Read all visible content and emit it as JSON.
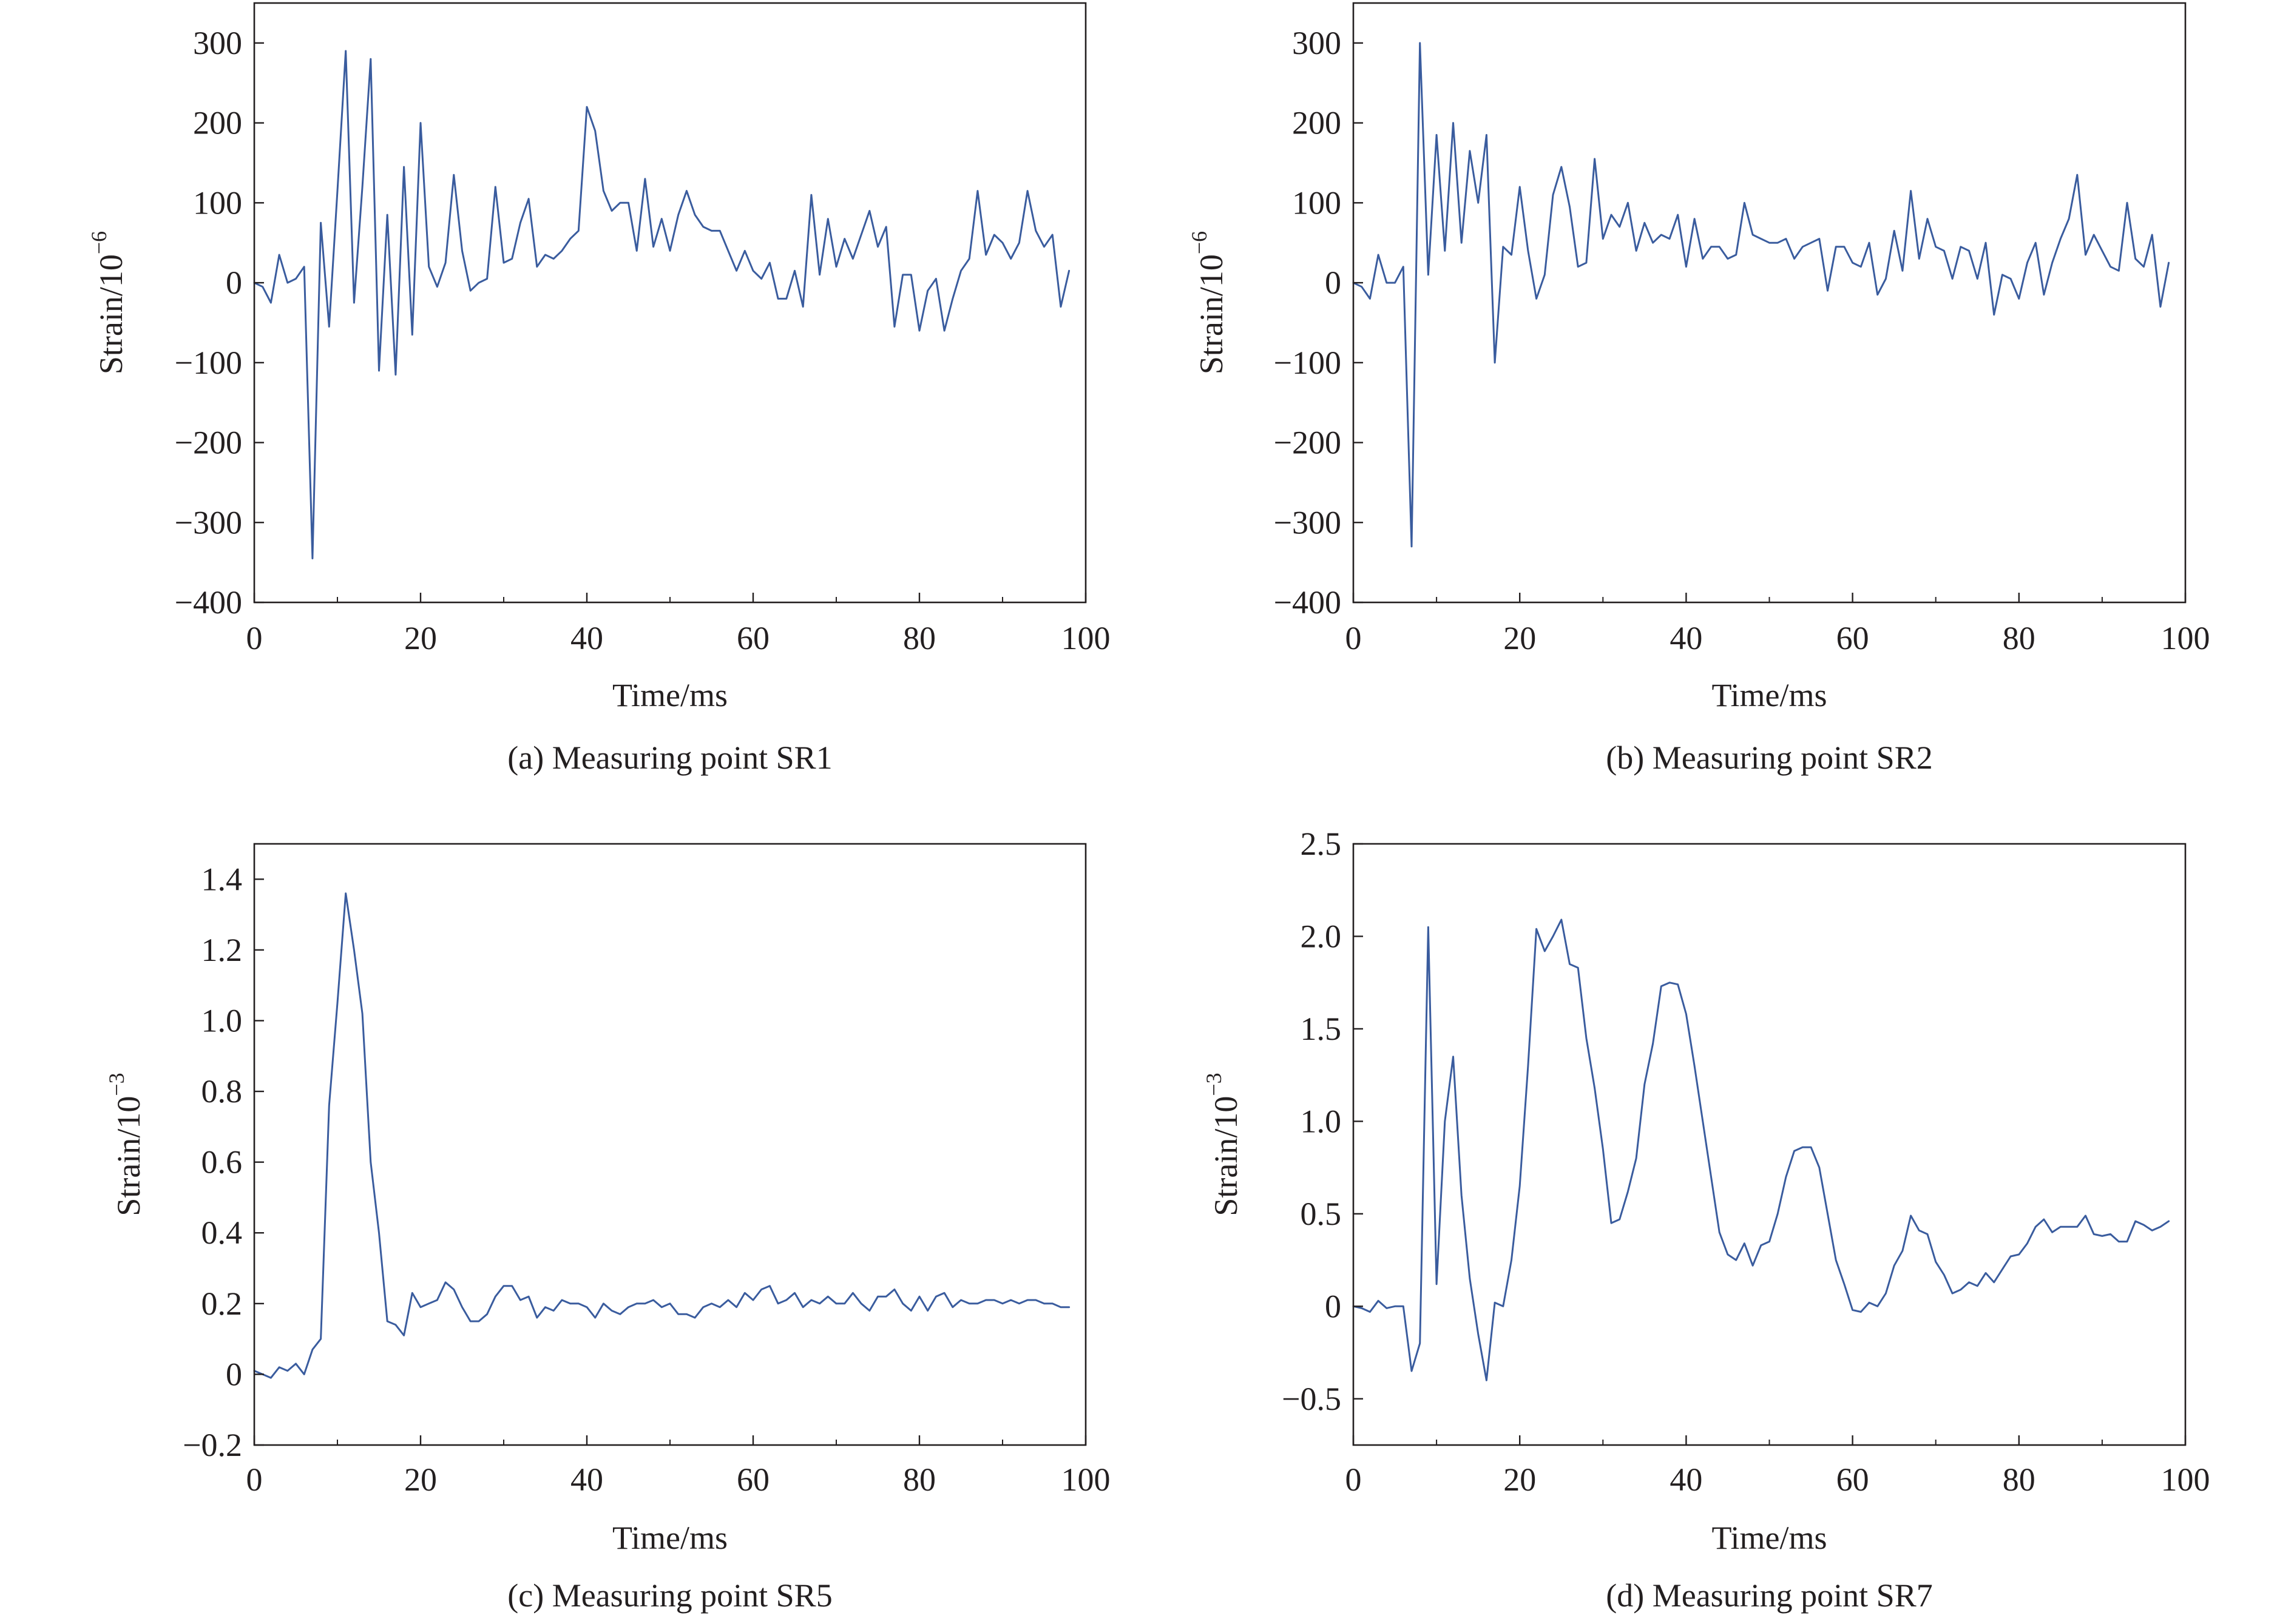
{
  "figure": {
    "line_color": "#3a5c9e",
    "axis_color": "#231f20"
  },
  "chart_data": [
    {
      "type": "line",
      "caption": "(a) Measuring point SR1",
      "xlabel": "Time/ms",
      "ylabel": "Strain/10",
      "ylabel_sup": "−6",
      "xlim": [
        0,
        100
      ],
      "ylim": [
        -400,
        350
      ],
      "xticks": [
        0,
        20,
        40,
        60,
        80,
        100
      ],
      "xtick_labels": [
        "0",
        "20",
        "40",
        "60",
        "80",
        "100"
      ],
      "xminor_ticks": [
        10,
        30,
        50,
        70,
        90
      ],
      "yticks": [
        -400,
        -300,
        -200,
        -100,
        0,
        100,
        200,
        300
      ],
      "ytick_labels": [
        "−400",
        "−300",
        "−200",
        "−100",
        "0",
        "100",
        "200",
        "300"
      ],
      "grid": false,
      "legend": "none",
      "series": [
        {
          "x": [
            0,
            1,
            2,
            3,
            4,
            5,
            6,
            7,
            8,
            9,
            10,
            11,
            12,
            13,
            14,
            15,
            16,
            17,
            18,
            19,
            20,
            21,
            22,
            23,
            24,
            25,
            26,
            27,
            28,
            29,
            30,
            31,
            32,
            33,
            34,
            35,
            36,
            37,
            38,
            39,
            40,
            41,
            42,
            43,
            44,
            45,
            46,
            47,
            48,
            49,
            50,
            51,
            52,
            53,
            54,
            55,
            56,
            57,
            58,
            59,
            60,
            61,
            62,
            63,
            64,
            65,
            66,
            67,
            68,
            69,
            70,
            71,
            72,
            73,
            74,
            75,
            76,
            77,
            78,
            79,
            80,
            81,
            82,
            83,
            84,
            85,
            86,
            87,
            88,
            89,
            90,
            91,
            92,
            93,
            94,
            95,
            96,
            97,
            98
          ],
          "y": [
            0,
            -5,
            -25,
            35,
            0,
            5,
            20,
            -345,
            75,
            -55,
            115,
            290,
            -25,
            120,
            280,
            -110,
            85,
            -115,
            145,
            -65,
            200,
            20,
            -5,
            25,
            135,
            40,
            -10,
            0,
            5,
            120,
            25,
            30,
            75,
            105,
            20,
            35,
            30,
            40,
            55,
            65,
            220,
            190,
            115,
            90,
            100,
            100,
            40,
            130,
            45,
            80,
            40,
            85,
            115,
            85,
            70,
            65,
            65,
            40,
            15,
            40,
            15,
            5,
            25,
            -20,
            -20,
            15,
            -30,
            110,
            10,
            80,
            20,
            55,
            30,
            60,
            90,
            45,
            70,
            -55,
            10,
            10,
            -60,
            -10,
            5,
            -60,
            -20,
            15,
            30,
            115,
            35,
            60,
            50,
            30,
            50,
            115,
            65,
            45,
            60,
            -30,
            15
          ]
        }
      ]
    },
    {
      "type": "line",
      "caption": "(b) Measuring point SR2",
      "xlabel": "Time/ms",
      "ylabel": "Strain/10",
      "ylabel_sup": "−6",
      "xlim": [
        0,
        100
      ],
      "ylim": [
        -400,
        350
      ],
      "xticks": [
        0,
        20,
        40,
        60,
        80,
        100
      ],
      "xtick_labels": [
        "0",
        "20",
        "40",
        "60",
        "80",
        "100"
      ],
      "xminor_ticks": [
        10,
        30,
        50,
        70,
        90
      ],
      "yticks": [
        -400,
        -300,
        -200,
        -100,
        0,
        100,
        200,
        300
      ],
      "ytick_labels": [
        "−400",
        "−300",
        "−200",
        "−100",
        "0",
        "100",
        "200",
        "300"
      ],
      "grid": false,
      "legend": "none",
      "series": [
        {
          "x": [
            0,
            1,
            2,
            3,
            4,
            5,
            6,
            7,
            8,
            9,
            10,
            11,
            12,
            13,
            14,
            15,
            16,
            17,
            18,
            19,
            20,
            21,
            22,
            23,
            24,
            25,
            26,
            27,
            28,
            29,
            30,
            31,
            32,
            33,
            34,
            35,
            36,
            37,
            38,
            39,
            40,
            41,
            42,
            43,
            44,
            45,
            46,
            47,
            48,
            49,
            50,
            51,
            52,
            53,
            54,
            55,
            56,
            57,
            58,
            59,
            60,
            61,
            62,
            63,
            64,
            65,
            66,
            67,
            68,
            69,
            70,
            71,
            72,
            73,
            74,
            75,
            76,
            77,
            78,
            79,
            80,
            81,
            82,
            83,
            84,
            85,
            86,
            87,
            88,
            89,
            90,
            91,
            92,
            93,
            94,
            95,
            96,
            97,
            98
          ],
          "y": [
            0,
            -5,
            -20,
            35,
            0,
            0,
            20,
            -330,
            300,
            10,
            185,
            40,
            200,
            50,
            165,
            100,
            185,
            -100,
            45,
            35,
            120,
            40,
            -20,
            10,
            110,
            145,
            95,
            20,
            25,
            155,
            55,
            85,
            70,
            100,
            40,
            75,
            50,
            60,
            55,
            85,
            20,
            80,
            30,
            45,
            45,
            30,
            35,
            100,
            60,
            55,
            50,
            50,
            55,
            30,
            45,
            50,
            55,
            -10,
            45,
            45,
            25,
            20,
            50,
            -15,
            5,
            65,
            15,
            115,
            30,
            80,
            45,
            40,
            5,
            45,
            40,
            5,
            50,
            -40,
            10,
            5,
            -20,
            25,
            50,
            -15,
            25,
            55,
            80,
            135,
            35,
            60,
            40,
            20,
            15,
            100,
            30,
            20,
            60,
            -30,
            25
          ]
        }
      ]
    },
    {
      "type": "line",
      "caption": "(c) Measuring point SR5",
      "xlabel": "Time/ms",
      "ylabel": "Strain/10",
      "ylabel_sup": "−3",
      "xlim": [
        0,
        100
      ],
      "ylim": [
        -0.2,
        1.5
      ],
      "xticks": [
        0,
        20,
        40,
        60,
        80,
        100
      ],
      "xtick_labels": [
        "0",
        "20",
        "40",
        "60",
        "80",
        "100"
      ],
      "xminor_ticks": [
        10,
        30,
        50,
        70,
        90
      ],
      "yticks": [
        -0.2,
        0,
        0.2,
        0.4,
        0.6,
        0.8,
        1.0,
        1.2,
        1.4
      ],
      "ytick_labels": [
        "−0.2",
        "0",
        "0.2",
        "0.4",
        "0.6",
        "0.8",
        "1.0",
        "1.2",
        "1.4"
      ],
      "grid": false,
      "legend": "none",
      "series": [
        {
          "x": [
            0,
            1,
            2,
            3,
            4,
            5,
            6,
            7,
            8,
            9,
            10,
            11,
            12,
            13,
            14,
            15,
            16,
            17,
            18,
            19,
            20,
            21,
            22,
            23,
            24,
            25,
            26,
            27,
            28,
            29,
            30,
            31,
            32,
            33,
            34,
            35,
            36,
            37,
            38,
            39,
            40,
            41,
            42,
            43,
            44,
            45,
            46,
            47,
            48,
            49,
            50,
            51,
            52,
            53,
            54,
            55,
            56,
            57,
            58,
            59,
            60,
            61,
            62,
            63,
            64,
            65,
            66,
            67,
            68,
            69,
            70,
            71,
            72,
            73,
            74,
            75,
            76,
            77,
            78,
            79,
            80,
            81,
            82,
            83,
            84,
            85,
            86,
            87,
            88,
            89,
            90,
            91,
            92,
            93,
            94,
            95,
            96,
            97,
            98
          ],
          "y": [
            0.01,
            0.0,
            -0.01,
            0.02,
            0.01,
            0.03,
            0.0,
            0.07,
            0.1,
            0.76,
            1.05,
            1.36,
            1.2,
            1.02,
            0.6,
            0.4,
            0.15,
            0.14,
            0.11,
            0.23,
            0.19,
            0.2,
            0.21,
            0.26,
            0.24,
            0.19,
            0.15,
            0.15,
            0.17,
            0.22,
            0.25,
            0.25,
            0.21,
            0.22,
            0.16,
            0.19,
            0.18,
            0.21,
            0.2,
            0.2,
            0.19,
            0.16,
            0.2,
            0.18,
            0.17,
            0.19,
            0.2,
            0.2,
            0.21,
            0.19,
            0.2,
            0.17,
            0.17,
            0.16,
            0.19,
            0.2,
            0.19,
            0.21,
            0.19,
            0.23,
            0.21,
            0.24,
            0.25,
            0.2,
            0.21,
            0.23,
            0.19,
            0.21,
            0.2,
            0.22,
            0.2,
            0.2,
            0.23,
            0.2,
            0.18,
            0.22,
            0.22,
            0.24,
            0.2,
            0.18,
            0.22,
            0.18,
            0.22,
            0.23,
            0.19,
            0.21,
            0.2,
            0.2,
            0.21,
            0.21,
            0.2,
            0.21,
            0.2,
            0.21,
            0.21,
            0.2,
            0.2,
            0.19,
            0.19
          ]
        }
      ]
    },
    {
      "type": "line",
      "caption": "(d) Measuring point SR7",
      "xlabel": "Time/ms",
      "ylabel": "Strain/10",
      "ylabel_sup": "−3",
      "xlim": [
        0,
        100
      ],
      "ylim": [
        -0.75,
        2.5
      ],
      "xticks": [
        0,
        20,
        40,
        60,
        80,
        100
      ],
      "xtick_labels": [
        "0",
        "20",
        "40",
        "60",
        "80",
        "100"
      ],
      "xminor_ticks": [
        10,
        30,
        50,
        70,
        90
      ],
      "yticks": [
        -0.5,
        0,
        0.5,
        1.0,
        1.5,
        2.0,
        2.5
      ],
      "ytick_labels": [
        "−0.5",
        "0",
        "0.5",
        "1.0",
        "1.5",
        "2.0",
        "2.5"
      ],
      "grid": false,
      "legend": "none",
      "series": [
        {
          "x": [
            0,
            1,
            2,
            3,
            4,
            5,
            6,
            7,
            8,
            9,
            10,
            11,
            12,
            13,
            14,
            15,
            16,
            17,
            18,
            19,
            20,
            21,
            22,
            23,
            24,
            25,
            26,
            27,
            28,
            29,
            30,
            31,
            32,
            33,
            34,
            35,
            36,
            37,
            38,
            39,
            40,
            41,
            42,
            43,
            44,
            45,
            46,
            47,
            48,
            49,
            50,
            51,
            52,
            53,
            54,
            55,
            56,
            57,
            58,
            59,
            60,
            61,
            62,
            63,
            64,
            65,
            66,
            67,
            68,
            69,
            70,
            71,
            72,
            73,
            74,
            75,
            76,
            77,
            78,
            79,
            80,
            81,
            82,
            83,
            84,
            85,
            86,
            87,
            88,
            89,
            90,
            91,
            92,
            93,
            94,
            95,
            96,
            97,
            98
          ],
          "y": [
            0.0,
            -0.01,
            -0.03,
            0.03,
            -0.01,
            0.0,
            0.0,
            -0.35,
            -0.2,
            2.05,
            0.12,
            1.0,
            1.35,
            0.6,
            0.15,
            -0.15,
            -0.4,
            0.02,
            0.0,
            0.25,
            0.65,
            1.3,
            2.04,
            1.92,
            2.0,
            2.09,
            1.85,
            1.83,
            1.45,
            1.18,
            0.85,
            0.45,
            0.47,
            0.62,
            0.8,
            1.2,
            1.42,
            1.73,
            1.75,
            1.74,
            1.58,
            1.3,
            1.0,
            0.7,
            0.4,
            0.28,
            0.25,
            0.34,
            0.22,
            0.33,
            0.35,
            0.5,
            0.7,
            0.84,
            0.86,
            0.86,
            0.75,
            0.5,
            0.25,
            0.12,
            -0.02,
            -0.03,
            0.02,
            0.0,
            0.07,
            0.22,
            0.3,
            0.49,
            0.41,
            0.39,
            0.24,
            0.17,
            0.07,
            0.09,
            0.13,
            0.11,
            0.18,
            0.13,
            0.2,
            0.27,
            0.28,
            0.34,
            0.43,
            0.47,
            0.4,
            0.43,
            0.43,
            0.43,
            0.49,
            0.39,
            0.38,
            0.39,
            0.35,
            0.35,
            0.46,
            0.44,
            0.41,
            0.43,
            0.46
          ]
        }
      ]
    }
  ]
}
